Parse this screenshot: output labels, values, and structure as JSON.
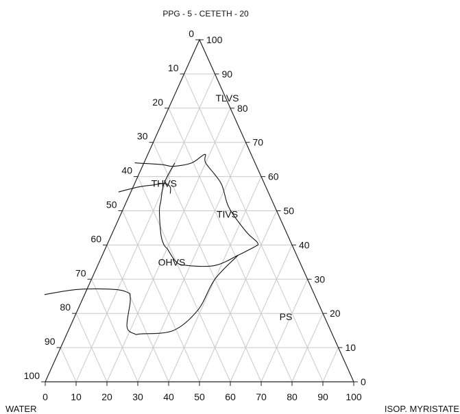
{
  "chart_data": {
    "type": "ternary",
    "title": "PPG - 5 - CETETH - 20",
    "components": {
      "top": "PPG - 5 - CETETH - 20",
      "left": "WATER",
      "right": "ISOP. MYRISTATE"
    },
    "grid_step": 10,
    "grid": true,
    "ticks": {
      "left_edge": [
        "0",
        "10",
        "20",
        "30",
        "40",
        "50",
        "60",
        "70",
        "80",
        "90",
        "100"
      ],
      "right_edge": [
        "100",
        "90",
        "80",
        "70",
        "60",
        "50",
        "40",
        "30",
        "20",
        "10",
        "0"
      ],
      "bottom_edge": [
        "0",
        "10",
        "20",
        "30",
        "40",
        "50",
        "60",
        "70",
        "80",
        "90",
        "100"
      ]
    },
    "regions": [
      {
        "name": "TLVS",
        "at": {
          "surf": 82,
          "oil": 18
        }
      },
      {
        "name": "THVS",
        "at": {
          "surf": 57,
          "oil": 10
        }
      },
      {
        "name": "TIVS",
        "at": {
          "surf": 48,
          "oil": 35
        }
      },
      {
        "name": "OHVS",
        "at": {
          "surf": 34,
          "oil": 24
        }
      },
      {
        "name": "PS",
        "at": {
          "surf": 18,
          "oil": 69
        }
      }
    ],
    "boundaries": [
      {
        "name": "TLVS upper boundary",
        "points": [
          [
            64,
            -3
          ],
          [
            63.5,
            6
          ],
          [
            63,
            10
          ],
          [
            64,
            15.5
          ],
          [
            66.5,
            18.5
          ],
          [
            64,
            20
          ],
          [
            58,
            28
          ],
          [
            51,
            34
          ],
          [
            44,
            43
          ],
          [
            41,
            48
          ],
          [
            40,
            49
          ]
        ]
      },
      {
        "name": "THVS lower boundary",
        "points": [
          [
            55.5,
            -4
          ],
          [
            57,
            2
          ],
          [
            57.5,
            6
          ],
          [
            58,
            9.5
          ],
          [
            57,
            12
          ],
          [
            55,
            13
          ]
        ]
      },
      {
        "name": "TIVS left boundary",
        "points": [
          [
            64,
            10
          ],
          [
            58,
            9.5
          ],
          [
            53,
            11
          ],
          [
            50,
            12
          ],
          [
            43,
            16
          ],
          [
            40,
            18.5
          ],
          [
            39,
            20
          ]
        ]
      },
      {
        "name": "TIVS lower boundary",
        "points": [
          [
            39,
            20
          ],
          [
            35,
            25
          ],
          [
            34,
            29
          ],
          [
            34,
            38
          ],
          [
            37,
            44
          ],
          [
            40,
            49
          ]
        ]
      },
      {
        "name": "OHVS lower boundary",
        "points": [
          [
            25.5,
            -13
          ],
          [
            27,
            -3
          ],
          [
            27,
            9
          ],
          [
            26,
            14
          ],
          [
            25,
            15
          ],
          [
            23,
            16
          ],
          [
            16,
            18.5
          ],
          [
            14,
            22
          ],
          [
            14,
            24
          ],
          [
            15,
            34
          ],
          [
            21,
            39
          ],
          [
            30,
            40
          ],
          [
            37,
            44
          ]
        ]
      }
    ]
  }
}
